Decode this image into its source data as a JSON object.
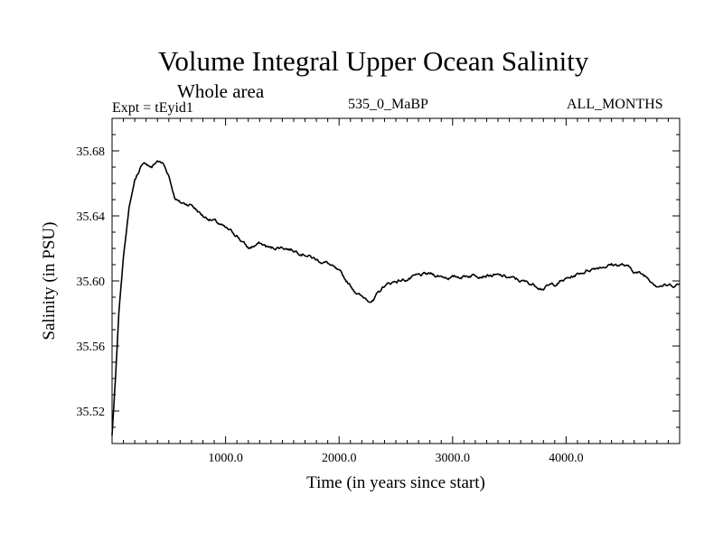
{
  "chart_data": {
    "type": "line",
    "title": "Volume Integral Upper Ocean Salinity",
    "subtitle": "Whole area",
    "expt_label": "Expt = tEyid1",
    "experiment_name": "535_0_MaBP",
    "period": "ALL_MONTHS",
    "xlabel": "Time (in years since start)",
    "ylabel": "Salinity (in PSU)",
    "xlim": [
      0,
      5000
    ],
    "ylim": [
      35.5,
      35.7
    ],
    "xticks": [
      1000,
      2000,
      3000,
      4000
    ],
    "xtick_labels": [
      "1000.0",
      "2000.0",
      "3000.0",
      "4000.0"
    ],
    "yticks": [
      35.52,
      35.56,
      35.6,
      35.64,
      35.68
    ],
    "ytick_labels": [
      "35.52",
      "35.56",
      "35.60",
      "35.64",
      "35.68"
    ],
    "grid": false,
    "series": [
      {
        "name": "salinity",
        "x": [
          0,
          30,
          60,
          100,
          150,
          200,
          250,
          300,
          350,
          400,
          450,
          500,
          550,
          600,
          700,
          800,
          900,
          1000,
          1100,
          1200,
          1300,
          1400,
          1500,
          1600,
          1700,
          1800,
          1900,
          2000,
          2100,
          2200,
          2300,
          2400,
          2500,
          2600,
          2700,
          2800,
          2900,
          3000,
          3100,
          3200,
          3300,
          3400,
          3500,
          3600,
          3700,
          3800,
          3900,
          4000,
          4100,
          4200,
          4300,
          4400,
          4500,
          4600,
          4700,
          4800,
          4900,
          5000
        ],
        "values": [
          35.505,
          35.54,
          35.58,
          35.615,
          35.645,
          35.662,
          35.67,
          35.672,
          35.67,
          35.674,
          35.672,
          35.665,
          35.652,
          35.648,
          35.647,
          35.64,
          35.637,
          35.632,
          35.628,
          35.62,
          35.623,
          35.62,
          35.621,
          35.619,
          35.617,
          35.613,
          35.611,
          35.605,
          35.597,
          35.59,
          35.588,
          35.597,
          35.6,
          35.601,
          35.603,
          35.604,
          35.603,
          35.602,
          35.603,
          35.604,
          35.604,
          35.603,
          35.602,
          35.6,
          35.598,
          35.596,
          35.598,
          35.601,
          35.604,
          35.607,
          35.609,
          35.61,
          35.61,
          35.606,
          35.603,
          35.598,
          35.597,
          35.598
        ]
      }
    ]
  }
}
